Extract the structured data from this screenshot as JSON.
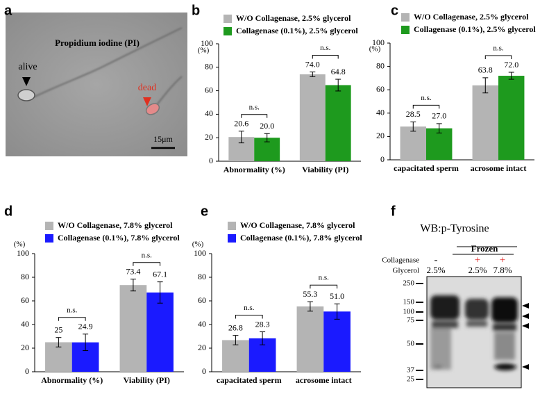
{
  "chart_data": [
    {
      "type": "bar",
      "panel_label": "b",
      "y_label": "(%)",
      "categories": [
        "Abnormality (%)",
        "Viability (PI)"
      ],
      "series": [
        {
          "name": "W/O Collagenase, 2.5% glycerol",
          "color": "#b4b4b4",
          "values": [
            20.6,
            74.0
          ],
          "value_labels": [
            "20.6",
            "74.0"
          ],
          "errors": [
            5,
            2
          ]
        },
        {
          "name": "Collagenase (0.1%), 2.5% glycerol",
          "color": "#1e9a1e",
          "values": [
            20.0,
            64.8
          ],
          "value_labels": [
            "20.0",
            "64.8"
          ],
          "errors": [
            3.5,
            5
          ]
        }
      ],
      "annotations": [
        "n.s.",
        "n.s."
      ],
      "ylim": [
        0,
        100
      ],
      "yticks": [
        0,
        20,
        40,
        60,
        80,
        100
      ]
    },
    {
      "type": "bar",
      "panel_label": "c",
      "y_label": "(%)",
      "categories": [
        "capacitated sperm",
        "acrosome intact"
      ],
      "series": [
        {
          "name": "W/O Collagenase, 2.5% glycerol",
          "color": "#b4b4b4",
          "values": [
            28.5,
            63.8
          ],
          "value_labels": [
            "28.5",
            "63.8"
          ],
          "errors": [
            4,
            6.5
          ]
        },
        {
          "name": "Collagenase (0.1%), 2.5% glycerol",
          "color": "#1e9a1e",
          "values": [
            27.0,
            72.0
          ],
          "value_labels": [
            "27.0",
            "72.0"
          ],
          "errors": [
            4,
            3
          ]
        }
      ],
      "annotations": [
        "n.s.",
        "n.s."
      ],
      "ylim": [
        0,
        100
      ],
      "yticks": [
        0,
        20,
        40,
        60,
        80,
        100
      ]
    },
    {
      "type": "bar",
      "panel_label": "d",
      "y_label": "(%)",
      "categories": [
        "Abnormality (%)",
        "Viability (PI)"
      ],
      "series": [
        {
          "name": "W/O Collagenase, 7.8% glycerol",
          "color": "#b4b4b4",
          "values": [
            25,
            73.4
          ],
          "value_labels": [
            "25",
            "73.4"
          ],
          "errors": [
            4,
            5
          ]
        },
        {
          "name": "Collagenase (0.1%), 7.8% glycerol",
          "color": "#1a1aff",
          "values": [
            24.9,
            67.1
          ],
          "value_labels": [
            "24.9",
            "67.1"
          ],
          "errors": [
            7,
            9
          ]
        }
      ],
      "annotations": [
        "n.s.",
        "n.s."
      ],
      "ylim": [
        0,
        100
      ],
      "yticks": [
        0,
        20,
        40,
        60,
        80,
        100
      ]
    },
    {
      "type": "bar",
      "panel_label": "e",
      "y_label": "(%)",
      "categories": [
        "capacitated sperm",
        "acrosome intact"
      ],
      "series": [
        {
          "name": "W/O Collagenase, 7.8% glycerol",
          "color": "#b4b4b4",
          "values": [
            26.8,
            55.3
          ],
          "value_labels": [
            "26.8",
            "55.3"
          ],
          "errors": [
            4,
            4
          ]
        },
        {
          "name": "Collagenase (0.1%), 7.8% glycerol",
          "color": "#1a1aff",
          "values": [
            28.3,
            51.0
          ],
          "value_labels": [
            "28.3",
            "51.0"
          ],
          "errors": [
            5.5,
            6.5
          ]
        }
      ],
      "annotations": [
        "n.s.",
        "n.s."
      ],
      "ylim": [
        0,
        100
      ],
      "yticks": [
        0,
        20,
        40,
        60,
        80,
        100
      ]
    }
  ],
  "image_panel": {
    "panel_label": "a",
    "title": "Propidium iodine (PI)",
    "alive": "alive",
    "dead": "dead",
    "scale_bar": "15μm"
  },
  "blot_panel": {
    "panel_label": "f",
    "title": "WB:p-Tyrosine",
    "group": "Frozen",
    "row_labels": [
      "Collagenase",
      "Glycerol"
    ],
    "collagenase": [
      "-",
      "+",
      "+"
    ],
    "glycerol": [
      "2.5%",
      "2.5%",
      "7.8%"
    ],
    "markers": [
      "250",
      "150",
      "100",
      "75",
      "50",
      "37",
      "25"
    ]
  }
}
